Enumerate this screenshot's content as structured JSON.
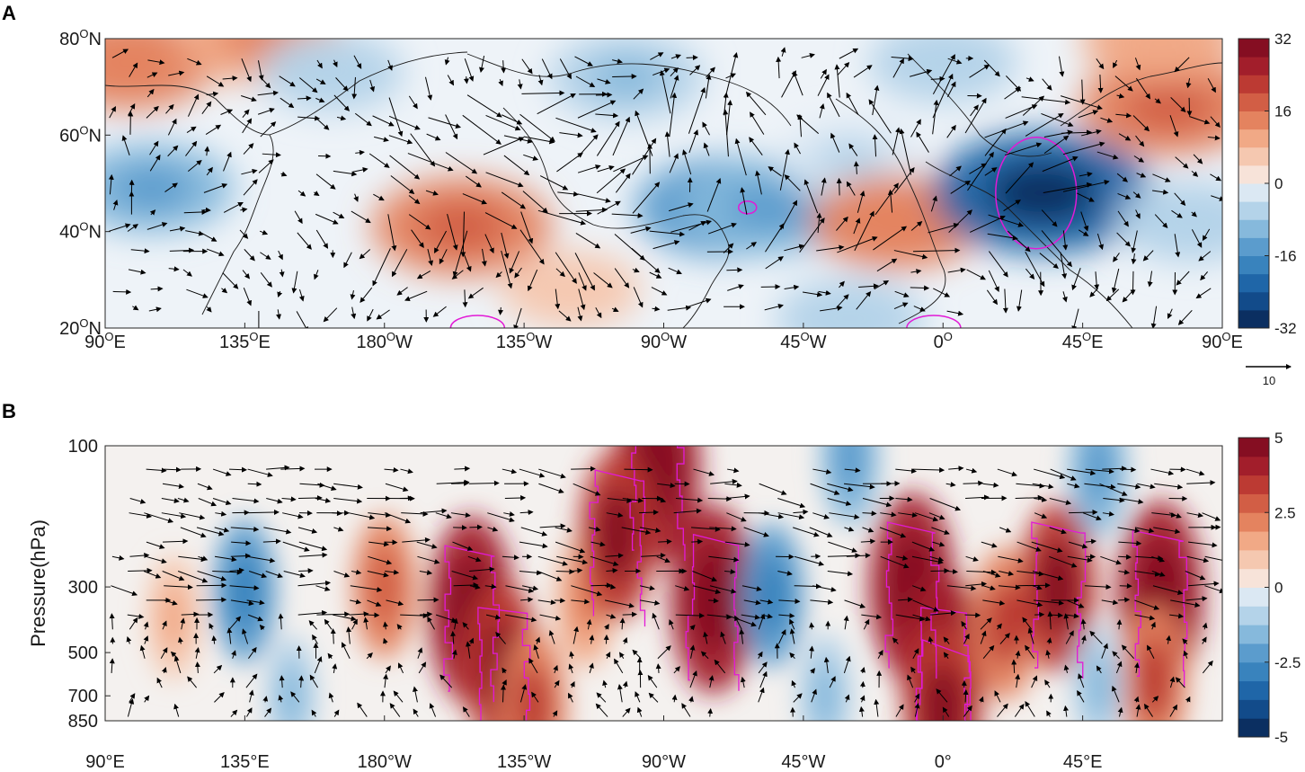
{
  "chart_data": [
    {
      "type": "heatmap",
      "panel": "A",
      "description_kind": "map",
      "x_ticks": [
        {
          "value": 90,
          "base": "90",
          "sup": "O",
          "suffix": "E"
        },
        {
          "value": 135,
          "base": "135",
          "sup": "O",
          "suffix": "E"
        },
        {
          "value": 180,
          "base": "180",
          "sup": "O",
          "suffix": "W"
        },
        {
          "value": 225,
          "base": "135",
          "sup": "O",
          "suffix": "W"
        },
        {
          "value": 270,
          "base": "90",
          "sup": "O",
          "suffix": "W"
        },
        {
          "value": 315,
          "base": "45",
          "sup": "O",
          "suffix": "W"
        },
        {
          "value": 360,
          "base": "0",
          "sup": "O",
          "suffix": ""
        },
        {
          "value": 405,
          "base": "45",
          "sup": "O",
          "suffix": "E"
        },
        {
          "value": 450,
          "base": "90",
          "sup": "O",
          "suffix": "E"
        }
      ],
      "y_ticks": [
        {
          "value": 20,
          "base": "20",
          "sup": "O",
          "suffix": "N"
        },
        {
          "value": 40,
          "base": "40",
          "sup": "O",
          "suffix": "N"
        },
        {
          "value": 60,
          "base": "60",
          "sup": "O",
          "suffix": "N"
        },
        {
          "value": 80,
          "base": "80",
          "sup": "O",
          "suffix": "N"
        }
      ],
      "xlim": [
        90,
        450
      ],
      "ylim": [
        20,
        80
      ],
      "colorbar": {
        "min": -32,
        "max": 32,
        "levels": 16,
        "ticks": [
          "32",
          "16",
          "0",
          "-16",
          "-32"
        ]
      },
      "reference_vector": {
        "label": "10"
      },
      "anomaly_centers": [
        {
          "lon": 98,
          "lat": 75,
          "value": 12
        },
        {
          "lon": 140,
          "lat": 80,
          "value": 10
        },
        {
          "lon": 105,
          "lat": 49,
          "value": -10
        },
        {
          "lon": 163,
          "lat": 73,
          "value": -5
        },
        {
          "lon": 205,
          "lat": 41,
          "value": 14
        },
        {
          "lon": 258,
          "lat": 72,
          "value": -8
        },
        {
          "lon": 290,
          "lat": 45,
          "value": -14
        },
        {
          "lon": 304,
          "lat": 45,
          "value": -12
        },
        {
          "lon": 330,
          "lat": 55,
          "value": -4
        },
        {
          "lon": 345,
          "lat": 42,
          "value": 12
        },
        {
          "lon": 360,
          "lat": 75,
          "value": -6
        },
        {
          "lon": 392,
          "lat": 48,
          "value": -24
        },
        {
          "lon": 433,
          "lat": 66,
          "value": 14
        },
        {
          "lon": 430,
          "lat": 80,
          "value": 8
        },
        {
          "lon": 440,
          "lat": 42,
          "value": -6
        },
        {
          "lon": 330,
          "lat": 22,
          "value": -6
        },
        {
          "lon": 240,
          "lat": 28,
          "value": 4
        }
      ],
      "significance_contours": [
        {
          "lon": 390,
          "lat": 48
        },
        {
          "lon": 297,
          "lat": 45
        },
        {
          "lon": 210,
          "lat": 20
        },
        {
          "lon": 357,
          "lat": 20
        }
      ]
    },
    {
      "type": "heatmap",
      "panel": "B",
      "description_kind": "longitude-pressure cross section",
      "ylabel": "Pressure(hPa)",
      "x_ticks": [
        {
          "value": 90,
          "label": "90°E"
        },
        {
          "value": 135,
          "label": "135°E"
        },
        {
          "value": 180,
          "label": "180°W"
        },
        {
          "value": 225,
          "label": "135°W"
        },
        {
          "value": 270,
          "label": "90°W"
        },
        {
          "value": 315,
          "label": "45°W"
        },
        {
          "value": 360,
          "label": "0°"
        },
        {
          "value": 405,
          "label": "45°E"
        }
      ],
      "y_ticks": [
        {
          "value": 100,
          "label": "100"
        },
        {
          "value": 300,
          "label": "300"
        },
        {
          "value": 500,
          "label": "500"
        },
        {
          "value": 700,
          "label": "700"
        },
        {
          "value": 850,
          "label": "850"
        }
      ],
      "xlim": [
        90,
        450
      ],
      "ylim": [
        100,
        850
      ],
      "colorbar": {
        "min": -5,
        "max": 5,
        "levels": 16,
        "ticks": [
          "5",
          "2.5",
          "0",
          "-2.5",
          "-5"
        ]
      },
      "anomaly_centers": [
        {
          "lon": 135,
          "lat": 310,
          "value": -2.5
        },
        {
          "lon": 112,
          "lat": 380,
          "value": 1.5
        },
        {
          "lon": 180,
          "lat": 300,
          "value": 2.5
        },
        {
          "lon": 208,
          "lat": 360,
          "value": 5
        },
        {
          "lon": 218,
          "lat": 560,
          "value": 4
        },
        {
          "lon": 228,
          "lat": 760,
          "value": 3
        },
        {
          "lon": 245,
          "lat": 330,
          "value": 2
        },
        {
          "lon": 268,
          "lat": 120,
          "value": 5
        },
        {
          "lon": 255,
          "lat": 200,
          "value": 4
        },
        {
          "lon": 286,
          "lat": 330,
          "value": 5
        },
        {
          "lon": 305,
          "lat": 320,
          "value": -2.5
        },
        {
          "lon": 350,
          "lat": 300,
          "value": 5
        },
        {
          "lon": 360,
          "lat": 560,
          "value": 5
        },
        {
          "lon": 360,
          "lat": 780,
          "value": 4
        },
        {
          "lon": 380,
          "lat": 400,
          "value": 3
        },
        {
          "lon": 397,
          "lat": 300,
          "value": 4
        },
        {
          "lon": 430,
          "lat": 320,
          "value": 5
        },
        {
          "lon": 428,
          "lat": 620,
          "value": 3
        },
        {
          "lon": 410,
          "lat": 120,
          "value": -2
        },
        {
          "lon": 330,
          "lat": 110,
          "value": -2
        },
        {
          "lon": 150,
          "lat": 700,
          "value": -1.2
        },
        {
          "lon": 410,
          "lat": 650,
          "value": -1.2
        },
        {
          "lon": 322,
          "lat": 700,
          "value": -1.5
        }
      ]
    }
  ]
}
